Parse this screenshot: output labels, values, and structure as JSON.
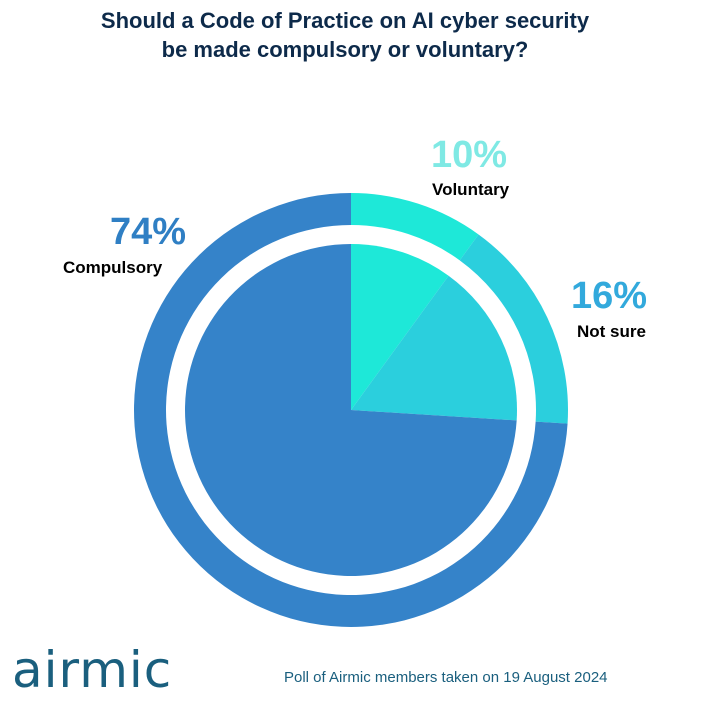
{
  "title": {
    "line1": "Should a Code of Practice on AI cyber security",
    "line2": "be made compulsory or voluntary?"
  },
  "chart_data": {
    "type": "pie",
    "categories": [
      "Compulsory",
      "Voluntary",
      "Not sure"
    ],
    "values": [
      74,
      10,
      16
    ],
    "labels": [
      "74%",
      "10%",
      "16%"
    ],
    "colors": [
      "#3583c9",
      "#1ee8d8",
      "#2bcfdd"
    ],
    "label_colors": [
      "#2f7fc4",
      "#7fe9e4",
      "#32a9dc"
    ]
  },
  "brand": {
    "name": "airmic",
    "color": "#1a5f7e"
  },
  "footnote": {
    "text": "Poll of Airmic members taken on 19 August 2024",
    "color": "#1a5f7e"
  },
  "colors": {
    "title": "#0d2a4a"
  }
}
